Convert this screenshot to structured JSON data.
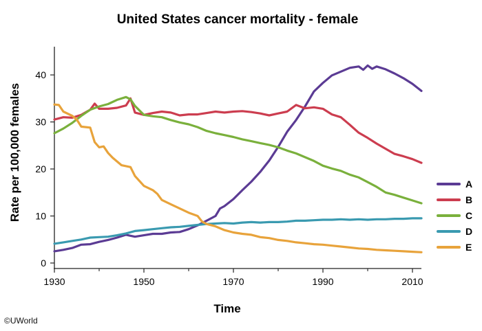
{
  "chart_data": {
    "type": "line",
    "title": "United States cancer mortality - female",
    "xlabel": "Time",
    "ylabel": "Rate per 100,000 females",
    "xlim": [
      1930,
      2012
    ],
    "ylim": [
      0,
      46
    ],
    "xticks": [
      "1930",
      "1950",
      "1970",
      "1990",
      "2010"
    ],
    "yticks": [
      "0",
      "10",
      "20",
      "30",
      "40"
    ],
    "grid": false,
    "legend_position": "right",
    "series": [
      {
        "name": "A",
        "color": "#5b3b94",
        "points": [
          [
            1930,
            2.5
          ],
          [
            1932,
            2.8
          ],
          [
            1934,
            3.2
          ],
          [
            1936,
            3.9
          ],
          [
            1938,
            4.0
          ],
          [
            1940,
            4.5
          ],
          [
            1942,
            4.9
          ],
          [
            1944,
            5.4
          ],
          [
            1946,
            6.0
          ],
          [
            1948,
            5.6
          ],
          [
            1950,
            5.9
          ],
          [
            1952,
            6.2
          ],
          [
            1954,
            6.2
          ],
          [
            1956,
            6.5
          ],
          [
            1958,
            6.6
          ],
          [
            1960,
            7.2
          ],
          [
            1962,
            8.0
          ],
          [
            1964,
            9.0
          ],
          [
            1966,
            10.0
          ],
          [
            1967,
            11.6
          ],
          [
            1968,
            12.1
          ],
          [
            1970,
            13.6
          ],
          [
            1972,
            15.5
          ],
          [
            1974,
            17.3
          ],
          [
            1976,
            19.4
          ],
          [
            1978,
            21.8
          ],
          [
            1980,
            24.7
          ],
          [
            1982,
            27.9
          ],
          [
            1984,
            30.4
          ],
          [
            1986,
            33.3
          ],
          [
            1988,
            36.5
          ],
          [
            1990,
            38.3
          ],
          [
            1992,
            39.9
          ],
          [
            1994,
            40.7
          ],
          [
            1996,
            41.5
          ],
          [
            1998,
            41.8
          ],
          [
            1999,
            41.1
          ],
          [
            2000,
            42.0
          ],
          [
            2001,
            41.3
          ],
          [
            2002,
            41.8
          ],
          [
            2004,
            41.2
          ],
          [
            2006,
            40.3
          ],
          [
            2008,
            39.3
          ],
          [
            2010,
            38.1
          ],
          [
            2012,
            36.6
          ]
        ]
      },
      {
        "name": "B",
        "color": "#cc3d4f",
        "points": [
          [
            1930,
            30.5
          ],
          [
            1932,
            31.0
          ],
          [
            1934,
            30.9
          ],
          [
            1936,
            31.5
          ],
          [
            1938,
            32.6
          ],
          [
            1939,
            33.9
          ],
          [
            1940,
            32.8
          ],
          [
            1942,
            32.8
          ],
          [
            1944,
            33.0
          ],
          [
            1946,
            33.5
          ],
          [
            1947,
            35.0
          ],
          [
            1948,
            32.0
          ],
          [
            1950,
            31.5
          ],
          [
            1952,
            31.9
          ],
          [
            1954,
            32.2
          ],
          [
            1956,
            32.0
          ],
          [
            1958,
            31.4
          ],
          [
            1960,
            31.6
          ],
          [
            1962,
            31.6
          ],
          [
            1964,
            31.9
          ],
          [
            1966,
            32.2
          ],
          [
            1968,
            32.0
          ],
          [
            1970,
            32.2
          ],
          [
            1972,
            32.3
          ],
          [
            1974,
            32.1
          ],
          [
            1976,
            31.8
          ],
          [
            1978,
            31.4
          ],
          [
            1980,
            31.8
          ],
          [
            1982,
            32.2
          ],
          [
            1984,
            33.6
          ],
          [
            1986,
            32.9
          ],
          [
            1988,
            33.1
          ],
          [
            1990,
            32.8
          ],
          [
            1992,
            31.6
          ],
          [
            1994,
            31.0
          ],
          [
            1996,
            29.4
          ],
          [
            1998,
            27.7
          ],
          [
            2000,
            26.6
          ],
          [
            2002,
            25.4
          ],
          [
            2004,
            24.3
          ],
          [
            2006,
            23.2
          ],
          [
            2008,
            22.7
          ],
          [
            2010,
            22.1
          ],
          [
            2012,
            21.3
          ]
        ]
      },
      {
        "name": "C",
        "color": "#7ab03c",
        "points": [
          [
            1930,
            27.6
          ],
          [
            1932,
            28.6
          ],
          [
            1934,
            29.8
          ],
          [
            1936,
            31.3
          ],
          [
            1938,
            32.6
          ],
          [
            1940,
            33.3
          ],
          [
            1942,
            33.8
          ],
          [
            1944,
            34.7
          ],
          [
            1946,
            35.3
          ],
          [
            1947,
            34.8
          ],
          [
            1948,
            33.4
          ],
          [
            1950,
            31.5
          ],
          [
            1952,
            31.2
          ],
          [
            1954,
            31.0
          ],
          [
            1956,
            30.4
          ],
          [
            1958,
            29.9
          ],
          [
            1960,
            29.5
          ],
          [
            1962,
            28.9
          ],
          [
            1964,
            28.1
          ],
          [
            1966,
            27.6
          ],
          [
            1968,
            27.2
          ],
          [
            1970,
            26.8
          ],
          [
            1972,
            26.3
          ],
          [
            1974,
            25.9
          ],
          [
            1976,
            25.5
          ],
          [
            1978,
            25.1
          ],
          [
            1980,
            24.6
          ],
          [
            1982,
            23.9
          ],
          [
            1984,
            23.3
          ],
          [
            1986,
            22.5
          ],
          [
            1988,
            21.7
          ],
          [
            1990,
            20.7
          ],
          [
            1992,
            20.1
          ],
          [
            1994,
            19.6
          ],
          [
            1996,
            18.8
          ],
          [
            1998,
            18.2
          ],
          [
            2000,
            17.2
          ],
          [
            2002,
            16.2
          ],
          [
            2004,
            15.0
          ],
          [
            2006,
            14.5
          ],
          [
            2008,
            13.9
          ],
          [
            2010,
            13.3
          ],
          [
            2012,
            12.7
          ]
        ]
      },
      {
        "name": "D",
        "color": "#3a9ab0",
        "points": [
          [
            1930,
            4.1
          ],
          [
            1932,
            4.4
          ],
          [
            1934,
            4.7
          ],
          [
            1936,
            5.0
          ],
          [
            1938,
            5.4
          ],
          [
            1940,
            5.5
          ],
          [
            1942,
            5.6
          ],
          [
            1944,
            5.9
          ],
          [
            1946,
            6.3
          ],
          [
            1948,
            6.8
          ],
          [
            1950,
            7.0
          ],
          [
            1952,
            7.2
          ],
          [
            1954,
            7.4
          ],
          [
            1956,
            7.6
          ],
          [
            1958,
            7.7
          ],
          [
            1960,
            7.9
          ],
          [
            1962,
            8.1
          ],
          [
            1964,
            8.3
          ],
          [
            1966,
            8.4
          ],
          [
            1968,
            8.5
          ],
          [
            1970,
            8.4
          ],
          [
            1972,
            8.6
          ],
          [
            1974,
            8.7
          ],
          [
            1976,
            8.6
          ],
          [
            1978,
            8.7
          ],
          [
            1980,
            8.7
          ],
          [
            1982,
            8.8
          ],
          [
            1984,
            9.0
          ],
          [
            1986,
            9.0
          ],
          [
            1988,
            9.1
          ],
          [
            1990,
            9.2
          ],
          [
            1992,
            9.2
          ],
          [
            1994,
            9.3
          ],
          [
            1996,
            9.2
          ],
          [
            1998,
            9.3
          ],
          [
            2000,
            9.2
          ],
          [
            2002,
            9.3
          ],
          [
            2004,
            9.3
          ],
          [
            2006,
            9.4
          ],
          [
            2008,
            9.4
          ],
          [
            2010,
            9.5
          ],
          [
            2012,
            9.5
          ]
        ]
      },
      {
        "name": "E",
        "color": "#e8a33b",
        "points": [
          [
            1930,
            33.7
          ],
          [
            1931,
            33.6
          ],
          [
            1932,
            32.2
          ],
          [
            1934,
            31.3
          ],
          [
            1935,
            30.5
          ],
          [
            1936,
            29.0
          ],
          [
            1938,
            28.8
          ],
          [
            1939,
            25.7
          ],
          [
            1940,
            24.6
          ],
          [
            1941,
            24.8
          ],
          [
            1942,
            23.4
          ],
          [
            1943,
            22.4
          ],
          [
            1944,
            21.6
          ],
          [
            1945,
            20.8
          ],
          [
            1947,
            20.4
          ],
          [
            1948,
            18.5
          ],
          [
            1950,
            16.4
          ],
          [
            1952,
            15.5
          ],
          [
            1953,
            14.7
          ],
          [
            1954,
            13.4
          ],
          [
            1956,
            12.5
          ],
          [
            1958,
            11.6
          ],
          [
            1960,
            10.7
          ],
          [
            1962,
            10.0
          ],
          [
            1963,
            8.8
          ],
          [
            1964,
            8.3
          ],
          [
            1966,
            7.8
          ],
          [
            1968,
            7.0
          ],
          [
            1970,
            6.5
          ],
          [
            1972,
            6.2
          ],
          [
            1974,
            6.0
          ],
          [
            1976,
            5.5
          ],
          [
            1978,
            5.3
          ],
          [
            1980,
            4.9
          ],
          [
            1982,
            4.7
          ],
          [
            1984,
            4.4
          ],
          [
            1986,
            4.2
          ],
          [
            1988,
            4.0
          ],
          [
            1990,
            3.9
          ],
          [
            1992,
            3.7
          ],
          [
            1994,
            3.5
          ],
          [
            1996,
            3.3
          ],
          [
            1998,
            3.1
          ],
          [
            2000,
            3.0
          ],
          [
            2002,
            2.8
          ],
          [
            2004,
            2.7
          ],
          [
            2006,
            2.6
          ],
          [
            2008,
            2.5
          ],
          [
            2010,
            2.4
          ],
          [
            2012,
            2.3
          ]
        ]
      }
    ]
  },
  "credit": "©UWorld"
}
